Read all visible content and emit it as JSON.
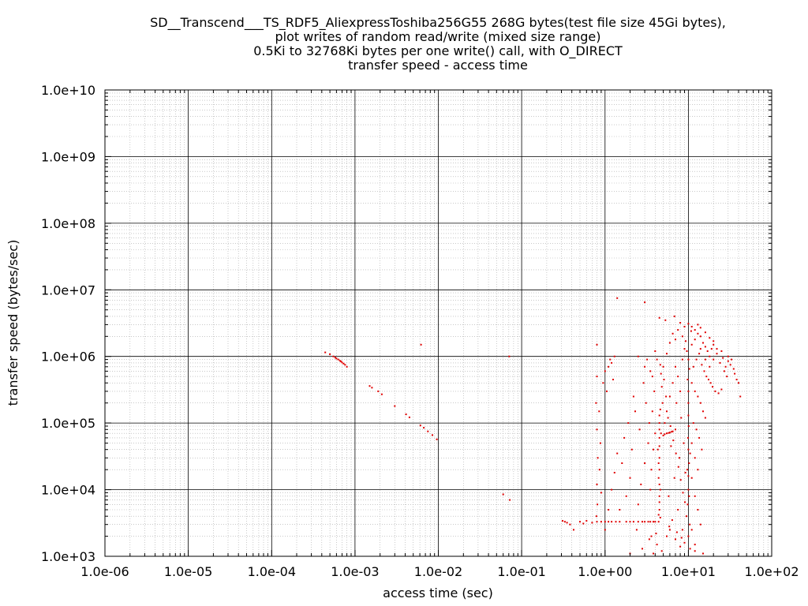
{
  "chart_data": {
    "type": "scatter",
    "title_lines": [
      "SD__Transcend___TS_RDF5_AliexpressToshiba256G55 268G bytes(test file size 45Gi bytes),",
      "plot writes of random read/write (mixed size range)",
      "0.5Ki to 32768Ki bytes per one write() call, with O_DIRECT",
      "transfer speed - access time"
    ],
    "xlabel": "access time (sec)",
    "ylabel": "transfer speed (bytes/sec)",
    "x_scale": "log",
    "y_scale": "log",
    "xlim": [
      1e-06,
      100
    ],
    "ylim": [
      1000,
      10000000000.0
    ],
    "x_ticks": [
      {
        "value": 1e-06,
        "label": "1.0e-06"
      },
      {
        "value": 1e-05,
        "label": "1.0e-05"
      },
      {
        "value": 0.0001,
        "label": "1.0e-04"
      },
      {
        "value": 0.001,
        "label": "1.0e-03"
      },
      {
        "value": 0.01,
        "label": "1.0e-02"
      },
      {
        "value": 0.1,
        "label": "1.0e-01"
      },
      {
        "value": 1,
        "label": "1.0e+00"
      },
      {
        "value": 10,
        "label": "1.0e+01"
      },
      {
        "value": 100,
        "label": "1.0e+02"
      }
    ],
    "y_ticks": [
      {
        "value": 1000,
        "label": "1.0e+03"
      },
      {
        "value": 10000,
        "label": "1.0e+04"
      },
      {
        "value": 100000,
        "label": "1.0e+05"
      },
      {
        "value": 1000000,
        "label": "1.0e+06"
      },
      {
        "value": 10000000,
        "label": "1.0e+07"
      },
      {
        "value": 100000000,
        "label": "1.0e+08"
      },
      {
        "value": 1000000000,
        "label": "1.0e+09"
      },
      {
        "value": 10000000000,
        "label": "1.0e+10"
      }
    ],
    "grid": true,
    "point_color": "#e00000",
    "points": [
      [
        0.00044,
        1150000
      ],
      [
        0.0005,
        1080000
      ],
      [
        0.00055,
        1000000
      ],
      [
        0.0006,
        930000
      ],
      [
        0.00063,
        900000
      ],
      [
        0.00066,
        860000
      ],
      [
        0.0007,
        810000
      ],
      [
        0.00073,
        780000
      ],
      [
        0.00076,
        750000
      ],
      [
        0.0008,
        700000
      ],
      [
        0.00058,
        960000
      ],
      [
        0.00068,
        840000
      ],
      [
        0.0015,
        360000
      ],
      [
        0.0016,
        340000
      ],
      [
        0.0019,
        300000
      ],
      [
        0.0021,
        270000
      ],
      [
        0.003,
        180000
      ],
      [
        0.0041,
        135000
      ],
      [
        0.0045,
        122000
      ],
      [
        0.0061,
        92000
      ],
      [
        0.0067,
        85000
      ],
      [
        0.0075,
        75000
      ],
      [
        0.0085,
        66000
      ],
      [
        0.0096,
        57000
      ],
      [
        0.0062,
        1500000
      ],
      [
        0.071,
        1000000
      ],
      [
        0.06,
        8500
      ],
      [
        0.072,
        7000
      ],
      [
        0.31,
        3400
      ],
      [
        0.33,
        3300
      ],
      [
        0.35,
        3200
      ],
      [
        0.38,
        3000
      ],
      [
        0.42,
        2500
      ],
      [
        0.5,
        3300
      ],
      [
        0.55,
        3100
      ],
      [
        0.6,
        3400
      ],
      [
        0.7,
        3200
      ],
      [
        0.8,
        3300
      ],
      [
        0.9,
        3300
      ],
      [
        1.0,
        3300
      ],
      [
        1.2,
        3300
      ],
      [
        1.5,
        3300
      ],
      [
        1.8,
        3300
      ],
      [
        2.0,
        3300
      ],
      [
        2.5,
        3300
      ],
      [
        3.0,
        3300
      ],
      [
        3.5,
        3300
      ],
      [
        4.0,
        3300
      ],
      [
        4.4,
        3300
      ],
      [
        1.1,
        3300
      ],
      [
        1.35,
        3300
      ],
      [
        2.2,
        3300
      ],
      [
        2.8,
        3300
      ],
      [
        3.3,
        3300
      ],
      [
        3.8,
        3300
      ],
      [
        0.8,
        1500000
      ],
      [
        0.8,
        500000
      ],
      [
        0.78,
        200000
      ],
      [
        0.8,
        80000
      ],
      [
        0.82,
        30000
      ],
      [
        0.8,
        12000
      ],
      [
        0.81,
        6000
      ],
      [
        0.79,
        4000
      ],
      [
        0.85,
        150000
      ],
      [
        0.88,
        50000
      ],
      [
        0.86,
        20000
      ],
      [
        0.9,
        9000
      ],
      [
        0.95,
        400000
      ],
      [
        1.0,
        600000
      ],
      [
        1.05,
        300000
      ],
      [
        1.1,
        700000
      ],
      [
        1.15,
        900000
      ],
      [
        1.2,
        800000
      ],
      [
        1.3,
        1000000
      ],
      [
        1.25,
        450000
      ],
      [
        1.4,
        7500000
      ],
      [
        3.0,
        6500000
      ],
      [
        4.5,
        5000
      ],
      [
        4.5,
        8000
      ],
      [
        4.5,
        12000
      ],
      [
        4.5,
        20000
      ],
      [
        4.5,
        30000
      ],
      [
        4.5,
        45000
      ],
      [
        4.5,
        60000
      ],
      [
        4.5,
        80000
      ],
      [
        4.5,
        100000
      ],
      [
        4.5,
        130000
      ],
      [
        4.6,
        160000
      ],
      [
        4.4,
        25000
      ],
      [
        4.4,
        15000
      ],
      [
        4.6,
        10000
      ],
      [
        4.5,
        6500
      ],
      [
        4.3,
        40000
      ],
      [
        4.7,
        70000
      ],
      [
        4.4,
        4200
      ],
      [
        4.6,
        3800
      ],
      [
        3.5,
        10000
      ],
      [
        3.6,
        20000
      ],
      [
        3.8,
        40000
      ],
      [
        4.0,
        70000
      ],
      [
        3.7,
        150000
      ],
      [
        3.9,
        300000
      ],
      [
        3.5,
        600000
      ],
      [
        3.2,
        900000
      ],
      [
        2.9,
        400000
      ],
      [
        3.1,
        200000
      ],
      [
        3.4,
        100000
      ],
      [
        3.3,
        50000
      ],
      [
        3.0,
        25000
      ],
      [
        2.7,
        12000
      ],
      [
        2.5,
        6000
      ],
      [
        2.6,
        80000
      ],
      [
        2.3,
        150000
      ],
      [
        2.1,
        40000
      ],
      [
        2.0,
        15000
      ],
      [
        1.8,
        8000
      ],
      [
        1.6,
        25000
      ],
      [
        1.5,
        5000
      ],
      [
        2.4,
        2500
      ],
      [
        3.6,
        2000
      ],
      [
        4.2,
        1500
      ],
      [
        4.8,
        1200
      ],
      [
        5.5,
        2000
      ],
      [
        6.0,
        2500
      ],
      [
        7.0,
        1800
      ],
      [
        8.0,
        1400
      ],
      [
        9.0,
        1600
      ],
      [
        10.5,
        1300
      ],
      [
        12.0,
        1200
      ],
      [
        3.8,
        1100
      ],
      [
        5.0,
        65000
      ],
      [
        5.5,
        70000
      ],
      [
        6.0,
        72000
      ],
      [
        6.5,
        75000
      ],
      [
        7.0,
        80000
      ],
      [
        5.2,
        68000
      ],
      [
        5.8,
        71000
      ],
      [
        6.3,
        74000
      ],
      [
        9.5,
        4000
      ],
      [
        9.8,
        6000
      ],
      [
        10.0,
        10000
      ],
      [
        10.0,
        16000
      ],
      [
        10.2,
        25000
      ],
      [
        10.0,
        40000
      ],
      [
        9.9,
        60000
      ],
      [
        10.1,
        90000
      ],
      [
        10.0,
        130000
      ],
      [
        10.0,
        200000
      ],
      [
        10.0,
        300000
      ],
      [
        9.8,
        450000
      ],
      [
        10.3,
        650000
      ],
      [
        10.0,
        900000
      ],
      [
        9.6,
        1200000
      ],
      [
        10.0,
        2000
      ],
      [
        10.4,
        3000
      ],
      [
        10.2,
        8000
      ],
      [
        9.7,
        20000
      ],
      [
        10.5,
        35000
      ],
      [
        8.0,
        300000
      ],
      [
        7.5,
        500000
      ],
      [
        7.0,
        700000
      ],
      [
        8.5,
        900000
      ],
      [
        9.0,
        1300000
      ],
      [
        6.5,
        400000
      ],
      [
        6.0,
        250000
      ],
      [
        5.5,
        150000
      ],
      [
        7.2,
        200000
      ],
      [
        8.2,
        120000
      ],
      [
        8.8,
        50000
      ],
      [
        7.8,
        30000
      ],
      [
        6.8,
        15000
      ],
      [
        5.8,
        8000
      ],
      [
        7.5,
        5000
      ],
      [
        8.5,
        2500
      ],
      [
        9.2,
        18000
      ],
      [
        6.2,
        45000
      ],
      [
        5.2,
        100000
      ],
      [
        5.0,
        700000
      ],
      [
        5.5,
        1100000
      ],
      [
        6.0,
        1600000
      ],
      [
        6.5,
        2200000
      ],
      [
        7.0,
        1800000
      ],
      [
        7.5,
        2500000
      ],
      [
        8.0,
        3200000
      ],
      [
        4.5,
        3800000
      ],
      [
        5.3,
        3500000
      ],
      [
        6.8,
        4000000
      ],
      [
        11.0,
        1500000
      ],
      [
        12.0,
        1800000
      ],
      [
        13.0,
        2200000
      ],
      [
        14.0,
        2000000
      ],
      [
        15.0,
        1600000
      ],
      [
        16.0,
        1400000
      ],
      [
        17.0,
        1200000
      ],
      [
        18.0,
        1000000
      ],
      [
        19.0,
        1300000
      ],
      [
        20.0,
        900000
      ],
      [
        22.0,
        1100000
      ],
      [
        24.0,
        800000
      ],
      [
        26.0,
        950000
      ],
      [
        28.0,
        700000
      ],
      [
        30.0,
        850000
      ],
      [
        11.5,
        700000
      ],
      [
        12.5,
        900000
      ],
      [
        13.5,
        1100000
      ],
      [
        14.5,
        750000
      ],
      [
        15.5,
        600000
      ],
      [
        16.5,
        500000
      ],
      [
        17.5,
        450000
      ],
      [
        18.5,
        400000
      ],
      [
        19.5,
        350000
      ],
      [
        21.0,
        300000
      ],
      [
        23.0,
        280000
      ],
      [
        25.0,
        320000
      ],
      [
        27.0,
        600000
      ],
      [
        29.0,
        500000
      ],
      [
        32.0,
        750000
      ],
      [
        35.0,
        650000
      ],
      [
        38.0,
        450000
      ],
      [
        42.0,
        250000
      ],
      [
        11.0,
        2800000
      ],
      [
        12.0,
        2500000
      ],
      [
        13.0,
        3000000
      ],
      [
        14.0,
        2700000
      ],
      [
        16.0,
        2300000
      ],
      [
        18.0,
        1900000
      ],
      [
        20.0,
        1700000
      ],
      [
        11.0,
        400000
      ],
      [
        12.0,
        300000
      ],
      [
        13.0,
        250000
      ],
      [
        14.0,
        200000
      ],
      [
        15.0,
        150000
      ],
      [
        16.0,
        120000
      ],
      [
        11.5,
        100000
      ],
      [
        12.5,
        80000
      ],
      [
        13.5,
        60000
      ],
      [
        14.5,
        40000
      ],
      [
        11.0,
        50000
      ],
      [
        12.0,
        30000
      ],
      [
        13.0,
        20000
      ],
      [
        11.0,
        15000
      ],
      [
        12.0,
        8000
      ],
      [
        13.0,
        5000
      ],
      [
        14.0,
        3000
      ],
      [
        11.0,
        2500
      ],
      [
        12.0,
        1500
      ],
      [
        15.0,
        1100
      ],
      [
        3.0,
        700000
      ],
      [
        2.5,
        1000000
      ],
      [
        4.0,
        1200000
      ],
      [
        4.2,
        900000
      ],
      [
        3.7,
        500000
      ],
      [
        2.2,
        250000
      ],
      [
        1.9,
        100000
      ],
      [
        1.7,
        60000
      ],
      [
        1.4,
        35000
      ],
      [
        1.3,
        18000
      ],
      [
        1.2,
        10000
      ],
      [
        1.1,
        5000
      ],
      [
        1.0,
        2500
      ],
      [
        4.1,
        2200
      ],
      [
        3.4,
        1800
      ],
      [
        2.8,
        1300
      ],
      [
        2.0,
        1100
      ],
      [
        4.9,
        200000
      ],
      [
        4.8,
        350000
      ],
      [
        4.7,
        550000
      ],
      [
        4.6,
        750000
      ],
      [
        5.1,
        450000
      ],
      [
        5.4,
        250000
      ],
      [
        5.7,
        120000
      ],
      [
        6.1,
        90000
      ],
      [
        6.6,
        55000
      ],
      [
        7.1,
        35000
      ],
      [
        7.6,
        22000
      ],
      [
        8.1,
        14000
      ],
      [
        8.6,
        9000
      ],
      [
        9.1,
        6500
      ],
      [
        6.4,
        3500
      ],
      [
        5.9,
        2800
      ],
      [
        7.3,
        2300
      ],
      [
        8.3,
        1900
      ],
      [
        10.0,
        3100000
      ],
      [
        9.0,
        2800000
      ],
      [
        8.5,
        2000000
      ],
      [
        9.3,
        1700000
      ],
      [
        10.8,
        2400000
      ],
      [
        14.0,
        1300000
      ],
      [
        16.0,
        900000
      ],
      [
        18.0,
        700000
      ],
      [
        20.0,
        1500000
      ],
      [
        22.0,
        1300000
      ],
      [
        25.0,
        1200000
      ],
      [
        30.0,
        1000000
      ],
      [
        33.0,
        900000
      ],
      [
        36.0,
        550000
      ],
      [
        40.0,
        400000
      ]
    ]
  }
}
